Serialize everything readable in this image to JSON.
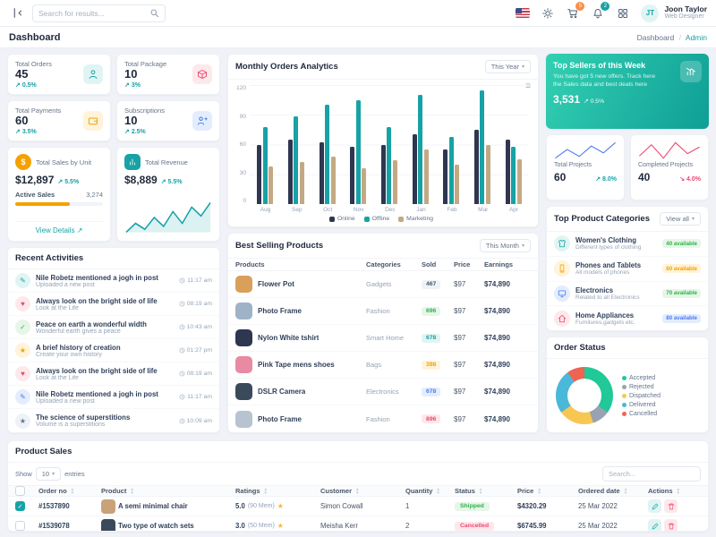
{
  "topbar": {
    "search_placeholder": "Search for results...",
    "cart_badge": "5",
    "bell_badge": "2",
    "user": {
      "name": "Joon Taylor",
      "role": "Web Designer",
      "initials": "JT"
    }
  },
  "pagehead": {
    "title": "Dashboard",
    "breadcrumb_root": "Dashboard",
    "breadcrumb_sep": "/",
    "breadcrumb_current": "Admin"
  },
  "stat_cards": [
    {
      "label": "Total Orders",
      "value": "45",
      "delta": "0.5%",
      "arrow": "↗",
      "delta_color": "#17a2a6",
      "icon_class": "ic-person",
      "icon_bg": "#e0f5f3",
      "icon_color": "#17a2a6"
    },
    {
      "label": "Total Package",
      "value": "10",
      "delta": "3%",
      "arrow": "↗",
      "delta_color": "#17a2a6",
      "icon_class": "ic-box",
      "icon_bg": "#fde8ec",
      "icon_color": "#ef476f"
    },
    {
      "label": "Total Payments",
      "value": "60",
      "delta": "3.5%",
      "arrow": "↗",
      "delta_color": "#17a2a6",
      "icon_class": "ic-wallet",
      "icon_bg": "#fff3d9",
      "icon_color": "#f4a100"
    },
    {
      "label": "Subscriptions",
      "value": "10",
      "delta": "2.5%",
      "arrow": "↗",
      "delta_color": "#17a2a6",
      "icon_class": "ic-userplus",
      "icon_bg": "#e3edfd",
      "icon_color": "#4c7cf3"
    }
  ],
  "sales_unit": {
    "title": "Total Sales by Unit",
    "icon_glyph": "$",
    "value": "$12,897",
    "delta": "5.5%",
    "arrow": "↗",
    "active_label": "Active Sales",
    "active_value": "3,274",
    "progress_pct": 62,
    "link": "View Details",
    "link_arrow": "↗"
  },
  "revenue": {
    "title": "Total Revenue",
    "value": "$8,889",
    "delta": "5.5%",
    "arrow": "↗"
  },
  "recent_activities": {
    "title": "Recent Activities",
    "items": [
      {
        "title": "Nile Robetz mentioned a jogh in post",
        "subtitle": "Uploaded a new post",
        "time": "11:17 am",
        "glyph": "✎",
        "color": "#17a2a6",
        "bg": "#e0f5f3"
      },
      {
        "title": "Always look on the bright side of life",
        "subtitle": "Look at the Life",
        "time": "08:19 am",
        "glyph": "♥",
        "color": "#ef476f",
        "bg": "#fde8ec"
      },
      {
        "title": "Peace on earth a wonderful width",
        "subtitle": "Wonderful earth gives a peace",
        "time": "10:43 am",
        "glyph": "✓",
        "color": "#2fb344",
        "bg": "#e6f6e9"
      },
      {
        "title": "A brief history of creation",
        "subtitle": "Create your own history",
        "time": "01:27 pm",
        "glyph": "★",
        "color": "#f4a100",
        "bg": "#fff3d9"
      },
      {
        "title": "Always look on the bright side of life",
        "subtitle": "Look at the Life",
        "time": "08:19 am",
        "glyph": "♥",
        "color": "#ef476f",
        "bg": "#fde8ec"
      },
      {
        "title": "Nile Robetz mentioned a jogh in post",
        "subtitle": "Uploaded a new post",
        "time": "11:17 am",
        "glyph": "✎",
        "color": "#4c7cf3",
        "bg": "#e3edfd"
      },
      {
        "title": "The science of superstitions",
        "subtitle": "Volume is a superstitions",
        "time": "10:09 am",
        "glyph": "★",
        "color": "#64748b",
        "bg": "#eef2f6"
      }
    ]
  },
  "monthly_orders": {
    "title": "Monthly Orders Analytics",
    "range_label": "This Year"
  },
  "best_selling": {
    "title": "Best Selling Products",
    "range_label": "This Month",
    "columns": [
      "Products",
      "Categories",
      "Sold",
      "Price",
      "Earnings"
    ],
    "rows": [
      {
        "name": "Flower Pot",
        "category": "Gadgets",
        "sold": "467",
        "price": "$97",
        "earnings": "$74,890",
        "badge_bg": "#eef2f6",
        "badge_color": "#475569",
        "thumb": "#d9a05b"
      },
      {
        "name": "Photo Frame",
        "category": "Fashion",
        "sold": "696",
        "price": "$97",
        "earnings": "$74,890",
        "badge_bg": "#e6f6e9",
        "badge_color": "#2fb344",
        "thumb": "#9fb3c8"
      },
      {
        "name": "Nylon White tshirt",
        "category": "Smart Home",
        "sold": "678",
        "price": "$97",
        "earnings": "$74,890",
        "badge_bg": "#e0f5f3",
        "badge_color": "#17a2a6",
        "thumb": "#2e3650"
      },
      {
        "name": "Pink Tape mens shoes",
        "category": "Bags",
        "sold": "398",
        "price": "$97",
        "earnings": "$74,890",
        "badge_bg": "#fff3d9",
        "badge_color": "#f4a100",
        "thumb": "#e88aa2"
      },
      {
        "name": "DSLR Camera",
        "category": "Electronics",
        "sold": "678",
        "price": "$97",
        "earnings": "$74,890",
        "badge_bg": "#e3edfd",
        "badge_color": "#4c7cf3",
        "thumb": "#3b4a5a"
      },
      {
        "name": "Photo Frame",
        "category": "Fashion",
        "sold": "896",
        "price": "$97",
        "earnings": "$74,890",
        "badge_bg": "#fde8ec",
        "badge_color": "#ef476f",
        "thumb": "#b7c3d0"
      }
    ]
  },
  "top_sellers": {
    "title": "Top Sellers of this Week",
    "desc": "You have got 5 new offers. Track here the Sales data and best deals here",
    "value": "3,531",
    "delta": "0.5%",
    "arrow": "↗"
  },
  "projects": [
    {
      "label": "Total Projects",
      "value": "60",
      "delta": "8.0%",
      "arrow": "↗",
      "delta_color": "#17a2a6",
      "spark_id": "total_projects_spark"
    },
    {
      "label": "Completed Projects",
      "value": "40",
      "delta": "4.0%",
      "arrow": "↘",
      "delta_color": "#ef476f",
      "spark_id": "completed_projects_spark"
    }
  ],
  "categories": {
    "title": "Top Product Categories",
    "range_label": "View all",
    "items": [
      {
        "name": "Women's Clothing",
        "desc": "Different types of clothing",
        "badge": "40 available",
        "icon_class": "ic-shirt",
        "icon_bg": "#e0f5f3",
        "icon_color": "#17a2a6",
        "badge_bg": "#e6f6e9",
        "badge_color": "#2fb344"
      },
      {
        "name": "Phones and Tablets",
        "desc": "All models of phones",
        "badge": "60 available",
        "icon_class": "ic-phone",
        "icon_bg": "#fff3d9",
        "icon_color": "#f4a100",
        "badge_bg": "#fff3d9",
        "badge_color": "#f4a100"
      },
      {
        "name": "Electronics",
        "desc": "Related to all Electronics",
        "badge": "70 available",
        "icon_class": "ic-monitor",
        "icon_bg": "#e3edfd",
        "icon_color": "#4c7cf3",
        "badge_bg": "#e6f6e9",
        "badge_color": "#2fb344"
      },
      {
        "name": "Home Appliances",
        "desc": "Furnitures,gadgets etc.",
        "badge": "80 available",
        "icon_class": "ic-home",
        "icon_bg": "#fde8ec",
        "icon_color": "#ef476f",
        "badge_bg": "#e3edfd",
        "badge_color": "#4c7cf3"
      }
    ]
  },
  "order_status": {
    "title": "Order Status"
  },
  "product_sales": {
    "title": "Product Sales",
    "show_label": "Show",
    "page_size": "10",
    "entries_label": "entries",
    "search_placeholder": "Search...",
    "columns": [
      "Order no",
      "Product",
      "Ratings",
      "Customer",
      "Quantity",
      "Status",
      "Price",
      "Ordered date",
      "Actions"
    ],
    "rows": [
      {
        "checked_class": "checked",
        "order_no": "#1537890",
        "product": "A semi minimal chair",
        "thumb": "#c9a27a",
        "rating": "5.0",
        "rating_count": "(90 Mem)",
        "customer": "Simon Cowall",
        "qty": "1",
        "status": "Shipped",
        "status_bg": "#e6f6e9",
        "status_color": "#2fb344",
        "price": "$4320.29",
        "date": "25 Mar 2022"
      },
      {
        "checked_class": "",
        "order_no": "#1539078",
        "product": "Two type of watch sets",
        "thumb": "#3b4a5a",
        "rating": "3.0",
        "rating_count": "(50 Mem)",
        "customer": "Meisha Kerr",
        "qty": "2",
        "status": "Cancelled",
        "status_bg": "#fde8ec",
        "status_color": "#ef476f",
        "price": "$6745.99",
        "date": "25 Mar 2022"
      }
    ]
  },
  "chart_data": [
    {
      "id": "monthly_orders",
      "type": "bar",
      "title": "Monthly Orders Analytics",
      "categories": [
        "Aug",
        "Sep",
        "Oct",
        "Nov",
        "Dec",
        "Jan",
        "Feb",
        "Mar",
        "Apr"
      ],
      "series": [
        {
          "name": "Online",
          "values": [
            60,
            65,
            62,
            58,
            60,
            70,
            55,
            75,
            65
          ]
        },
        {
          "name": "Offline",
          "values": [
            78,
            88,
            100,
            105,
            78,
            110,
            68,
            115,
            58
          ]
        },
        {
          "name": "Marketing",
          "values": [
            38,
            42,
            48,
            36,
            44,
            55,
            40,
            60,
            45
          ]
        }
      ],
      "colors": [
        "#2e3650",
        "#17a2a6",
        "#c3a983"
      ],
      "ylim": [
        0,
        120
      ],
      "yticks": [
        0,
        30,
        60,
        90,
        120
      ],
      "grid": true,
      "legend_position": "bottom"
    },
    {
      "id": "revenue_spark",
      "type": "area",
      "values": [
        18,
        30,
        22,
        38,
        26,
        46,
        30,
        52,
        40,
        58
      ],
      "color": "#17a2a6"
    },
    {
      "id": "total_projects_spark",
      "type": "line",
      "values": [
        8,
        18,
        10,
        22,
        14,
        26
      ],
      "color": "#4c7cf3"
    },
    {
      "id": "completed_projects_spark",
      "type": "line",
      "values": [
        12,
        22,
        10,
        24,
        14,
        20
      ],
      "color": "#ef476f"
    },
    {
      "id": "order_status",
      "type": "pie",
      "donut": true,
      "labels": [
        "Accepted",
        "Rejected",
        "Dispatched",
        "Delivered",
        "Cancelled"
      ],
      "values": [
        35,
        10,
        20,
        25,
        10
      ],
      "colors": [
        "#20c997",
        "#98a2b3",
        "#f7c752",
        "#4ab8d8",
        "#ee6352"
      ]
    }
  ]
}
